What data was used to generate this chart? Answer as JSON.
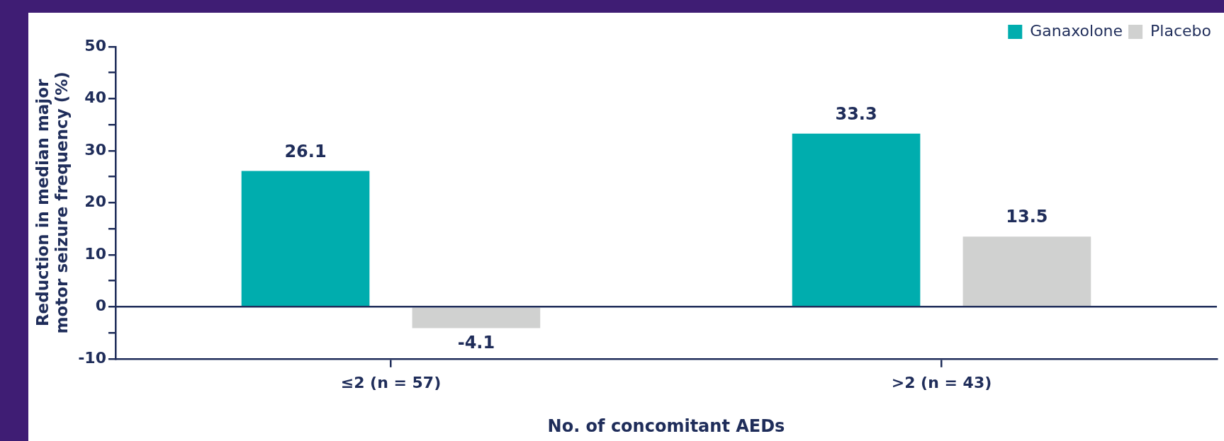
{
  "chart_data": {
    "type": "bar",
    "xlabel": "No. of concomitant AEDs",
    "ylabel": "Reduction in median major motor seizure frequency (%)",
    "categories": [
      "≤2 (n = 57)",
      ">2 (n = 43)"
    ],
    "series": [
      {
        "name": "Ganaxolone",
        "color": "#00adae",
        "values": [
          26.1,
          33.3
        ]
      },
      {
        "name": "Placebo",
        "color": "#d0d1d0",
        "values": [
          -4.1,
          13.5
        ]
      }
    ],
    "ylim": [
      -10,
      50
    ],
    "yticks": [
      -10,
      {
        "value": -5,
        "label": null
      },
      0,
      {
        "value": 5,
        "label": null
      },
      10,
      {
        "value": 15,
        "label": null
      },
      20,
      {
        "value": 25,
        "label": null
      },
      30,
      {
        "value": 35,
        "label": null
      },
      40,
      {
        "value": 45,
        "label": null
      },
      50
    ],
    "data_labels": true,
    "grid": false,
    "legend": "top right"
  }
}
